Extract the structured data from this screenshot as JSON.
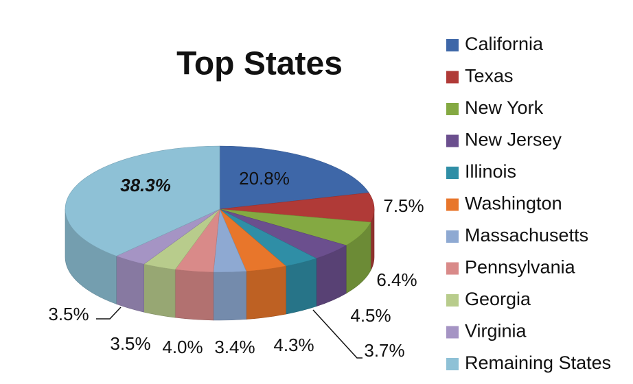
{
  "chart_data": {
    "type": "pie",
    "title": "Top States",
    "categories": [
      "California",
      "Texas",
      "New York",
      "New Jersey",
      "Illinois",
      "Washington",
      "Massachusetts",
      "Pennsylvania",
      "Georgia",
      "Virginia",
      "Remaining States"
    ],
    "values": [
      20.8,
      7.5,
      6.4,
      4.5,
      3.7,
      4.3,
      3.4,
      4.0,
      3.5,
      3.5,
      38.3
    ],
    "value_labels": [
      "20.8%",
      "7.5%",
      "6.4%",
      "4.5%",
      "3.7%",
      "4.3%",
      "3.4%",
      "4.0%",
      "3.5%",
      "3.5%",
      "38.3%"
    ],
    "colors": [
      "#3e67a8",
      "#b03a37",
      "#84a942",
      "#6b4f8e",
      "#2f8ea6",
      "#e8762b",
      "#8ea9d2",
      "#d98a89",
      "#b8cc8c",
      "#a594c4",
      "#8ec1d6"
    ],
    "legend": "right"
  }
}
